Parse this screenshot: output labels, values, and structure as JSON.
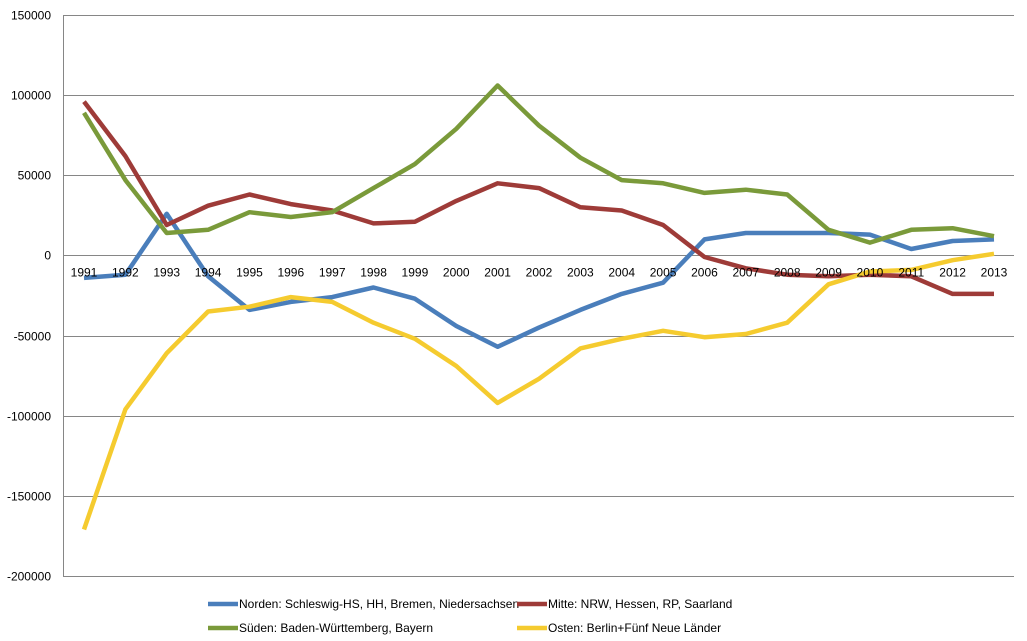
{
  "chart_data": {
    "type": "line",
    "title": "",
    "xlabel": "",
    "ylabel": "",
    "ylim": [
      -200000,
      150000
    ],
    "yticks": [
      150000,
      100000,
      50000,
      0,
      -50000,
      -100000,
      -150000,
      -200000
    ],
    "ytick_labels": [
      "150000",
      "100000",
      "50000",
      "0",
      "-50000",
      "-100000",
      "-150000",
      "-200000"
    ],
    "grid": true,
    "legend_position": "bottom",
    "categories": [
      "1991",
      "1992",
      "1993",
      "1994",
      "1995",
      "1996",
      "1997",
      "1998",
      "1999",
      "2000",
      "2001",
      "2002",
      "2003",
      "2004",
      "2005",
      "2006",
      "2007",
      "2008",
      "2009",
      "2010",
      "2011",
      "2012",
      "2013"
    ],
    "series": [
      {
        "name": "Norden: Schleswig-HS, HH, Bremen, Niedersachsen",
        "color": "#4A7EBB",
        "values": [
          -14000,
          -12000,
          26000,
          -13000,
          -34000,
          -29000,
          -26000,
          -20000,
          -27000,
          -44000,
          -57000,
          -45000,
          -34000,
          -24000,
          -17000,
          10000,
          14000,
          14000,
          14000,
          13000,
          4000,
          9000,
          10000
        ]
      },
      {
        "name": "Mitte: NRW, Hessen, RP, Saarland",
        "color": "#9E3B38",
        "values": [
          96000,
          62000,
          19000,
          31000,
          38000,
          32000,
          28000,
          20000,
          21000,
          34000,
          45000,
          42000,
          30000,
          28000,
          19000,
          -1000,
          -8000,
          -12000,
          -13000,
          -12000,
          -13000,
          -24000,
          -24000
        ]
      },
      {
        "name": "Süden: Baden-Württemberg, Bayern",
        "color": "#7A9A3A",
        "values": [
          89000,
          47000,
          14000,
          16000,
          27000,
          24000,
          27000,
          42000,
          57000,
          79000,
          106000,
          81000,
          61000,
          47000,
          45000,
          39000,
          41000,
          38000,
          16000,
          8000,
          16000,
          17000,
          12000
        ]
      },
      {
        "name": "Osten: Berlin+Fünf Neue Länder",
        "color": "#F5CB2F",
        "values": [
          -171000,
          -96000,
          -61000,
          -35000,
          -32000,
          -26000,
          -29000,
          -42000,
          -52000,
          -69000,
          -92000,
          -77000,
          -58000,
          -52000,
          -47000,
          -51000,
          -49000,
          -42000,
          -18000,
          -10000,
          -9000,
          -3000,
          1000
        ]
      }
    ]
  }
}
